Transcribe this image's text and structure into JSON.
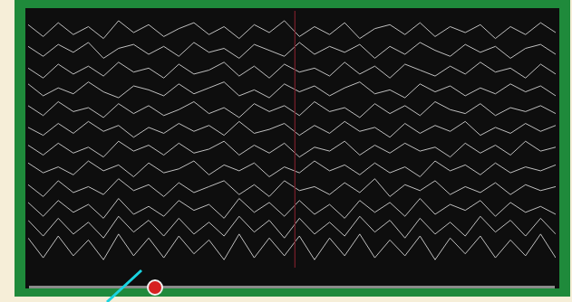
{
  "chart_data": {
    "type": "line",
    "color": "#d4d4d4",
    "grid": false,
    "tick_labels": false,
    "xlim": [
      0,
      35
    ],
    "ylim": [
      0,
      13
    ],
    "x": [
      0,
      1,
      2,
      3,
      4,
      5,
      6,
      7,
      8,
      9,
      10,
      11,
      12,
      13,
      14,
      15,
      16,
      17,
      18,
      19,
      20,
      21,
      22,
      23,
      24,
      25,
      26,
      27,
      28,
      29,
      30,
      31,
      32,
      33,
      34,
      35
    ],
    "cursor": {
      "x": 17.7,
      "color": "#7a1f2b"
    },
    "series": [
      {
        "values": [
          12.3,
          11.7,
          12.4,
          11.8,
          12.2,
          11.6,
          12.5,
          11.9,
          12.3,
          11.7,
          12.1,
          12.4,
          11.8,
          12.2,
          11.6,
          12.3,
          11.9,
          12.5,
          11.7,
          12.2,
          11.8,
          12.4,
          11.6,
          12.1,
          12.3,
          11.8,
          12.4,
          11.7,
          12.2,
          11.9,
          12.3,
          11.6,
          12.2,
          11.8,
          12.4,
          11.9
        ]
      },
      {
        "values": [
          11.2,
          10.7,
          11.3,
          10.9,
          11.4,
          10.6,
          11.1,
          11.3,
          10.8,
          11.2,
          10.7,
          11.4,
          10.9,
          11.1,
          10.6,
          11.3,
          11.0,
          10.7,
          11.4,
          10.8,
          11.2,
          10.9,
          11.3,
          10.6,
          11.2,
          10.8,
          11.4,
          11.0,
          10.7,
          11.3,
          10.9,
          11.2,
          10.6,
          11.1,
          11.3,
          10.8
        ]
      },
      {
        "values": [
          10.1,
          9.6,
          10.3,
          9.8,
          10.2,
          9.7,
          10.4,
          9.9,
          10.1,
          9.6,
          10.3,
          9.8,
          10.0,
          10.4,
          9.7,
          10.2,
          9.6,
          10.3,
          9.9,
          10.1,
          9.7,
          10.4,
          9.8,
          10.2,
          9.6,
          10.3,
          10.0,
          9.7,
          10.2,
          9.8,
          10.4,
          9.9,
          10.1,
          9.6,
          10.3,
          9.8
        ]
      },
      {
        "values": [
          9.3,
          8.7,
          9.1,
          8.8,
          9.4,
          8.9,
          8.6,
          9.2,
          9.0,
          8.7,
          9.3,
          8.8,
          9.1,
          9.4,
          8.7,
          9.0,
          8.6,
          9.3,
          8.9,
          9.2,
          8.7,
          9.1,
          9.4,
          8.8,
          9.0,
          8.6,
          9.3,
          8.9,
          9.2,
          8.7,
          9.1,
          8.8,
          9.3,
          8.9,
          9.2,
          8.7
        ]
      },
      {
        "values": [
          8.2,
          7.7,
          8.4,
          7.9,
          8.1,
          7.6,
          8.3,
          7.8,
          8.2,
          7.7,
          8.0,
          8.4,
          7.8,
          8.1,
          7.6,
          8.3,
          7.9,
          8.2,
          7.7,
          8.4,
          7.9,
          8.1,
          7.6,
          8.3,
          7.8,
          8.2,
          7.7,
          8.4,
          8.0,
          7.8,
          8.3,
          7.7,
          8.1,
          7.9,
          8.2,
          7.8
        ]
      },
      {
        "values": [
          7.1,
          6.7,
          7.3,
          6.8,
          7.4,
          6.9,
          7.2,
          6.6,
          7.1,
          6.8,
          7.3,
          6.9,
          7.2,
          6.7,
          7.4,
          6.8,
          7.0,
          7.3,
          6.7,
          7.2,
          6.8,
          7.4,
          6.9,
          7.1,
          6.6,
          7.3,
          6.8,
          7.2,
          6.9,
          7.4,
          6.7,
          7.1,
          6.8,
          7.3,
          6.9,
          7.2
        ]
      },
      {
        "values": [
          6.2,
          5.7,
          6.3,
          5.8,
          6.1,
          5.6,
          6.4,
          5.9,
          6.2,
          5.7,
          6.3,
          5.8,
          6.0,
          6.4,
          5.7,
          6.2,
          5.8,
          6.3,
          5.6,
          6.1,
          5.9,
          6.4,
          5.7,
          6.2,
          5.8,
          6.3,
          5.9,
          6.1,
          5.6,
          6.3,
          5.8,
          6.2,
          5.7,
          6.4,
          5.9,
          6.1
        ]
      },
      {
        "values": [
          5.3,
          4.8,
          5.1,
          4.7,
          5.4,
          4.9,
          5.2,
          4.6,
          5.3,
          4.8,
          5.0,
          5.4,
          4.7,
          5.2,
          4.9,
          5.3,
          4.6,
          5.1,
          4.8,
          5.4,
          4.9,
          5.2,
          4.7,
          5.3,
          4.8,
          5.1,
          4.6,
          5.4,
          4.9,
          5.2,
          4.7,
          5.3,
          4.8,
          5.1,
          4.9,
          5.2
        ]
      },
      {
        "values": [
          4.2,
          3.6,
          4.4,
          3.8,
          4.1,
          3.7,
          4.5,
          3.9,
          4.2,
          3.6,
          4.3,
          3.8,
          4.1,
          4.4,
          3.7,
          4.2,
          3.6,
          4.4,
          3.9,
          4.1,
          3.7,
          4.3,
          3.8,
          4.5,
          3.6,
          4.2,
          3.9,
          4.4,
          3.7,
          4.1,
          3.8,
          4.3,
          3.7,
          4.2,
          3.9,
          4.1
        ]
      },
      {
        "values": [
          3.3,
          2.6,
          3.4,
          2.8,
          3.2,
          2.5,
          3.5,
          2.7,
          3.1,
          2.6,
          3.4,
          2.9,
          3.2,
          2.5,
          3.5,
          2.8,
          3.3,
          2.6,
          3.4,
          2.7,
          3.2,
          2.5,
          3.4,
          2.8,
          3.3,
          2.6,
          3.5,
          2.7,
          3.2,
          2.9,
          3.4,
          2.6,
          3.3,
          2.8,
          3.1,
          2.7
        ]
      },
      {
        "values": [
          2.4,
          1.6,
          2.5,
          1.7,
          2.3,
          1.5,
          2.6,
          1.8,
          2.4,
          1.6,
          2.5,
          1.7,
          2.3,
          1.6,
          2.6,
          1.8,
          2.4,
          1.5,
          2.5,
          1.7,
          2.3,
          1.6,
          2.6,
          1.8,
          2.4,
          1.5,
          2.5,
          1.7,
          2.3,
          1.6,
          2.6,
          1.8,
          2.4,
          1.6,
          2.5,
          1.7
        ]
      },
      {
        "values": [
          1.5,
          0.5,
          1.6,
          0.6,
          1.4,
          0.4,
          1.7,
          0.6,
          1.5,
          0.5,
          1.6,
          0.7,
          1.4,
          0.4,
          1.7,
          0.5,
          1.5,
          0.6,
          1.6,
          0.4,
          1.5,
          0.6,
          1.7,
          0.5,
          1.4,
          0.6,
          1.6,
          0.4,
          1.5,
          0.7,
          1.6,
          0.5,
          1.4,
          0.6,
          1.7,
          0.5
        ]
      }
    ]
  }
}
